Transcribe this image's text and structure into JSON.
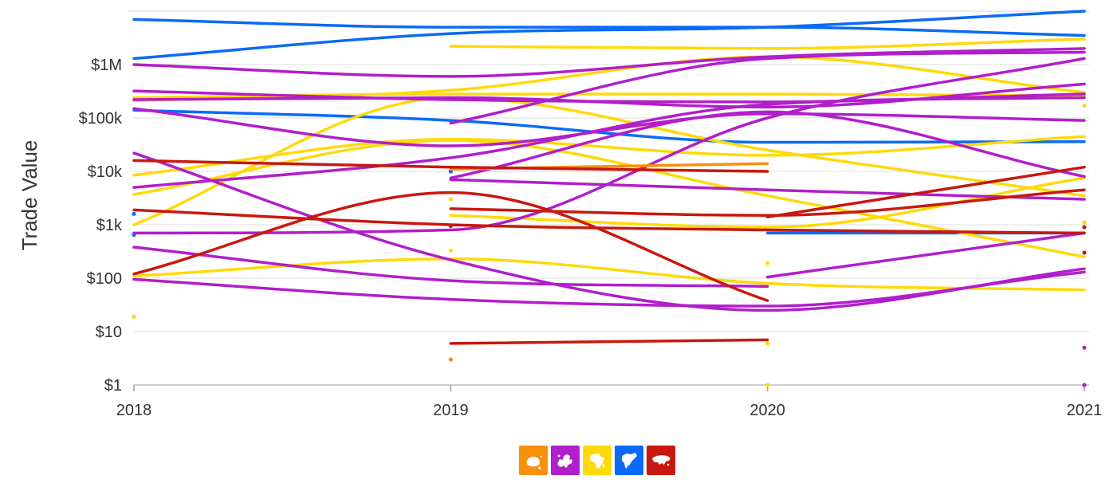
{
  "chart_data": {
    "type": "line",
    "title": "",
    "xlabel": "",
    "ylabel": "Trade Value",
    "x": [
      2018,
      2019,
      2020,
      2021
    ],
    "xlim": [
      2018,
      2021
    ],
    "y_scale": "log",
    "ylim": [
      1,
      30000000
    ],
    "y_ticks": [
      {
        "value": 1,
        "label": "$1"
      },
      {
        "value": 10,
        "label": "$10"
      },
      {
        "value": 100,
        "label": "$100"
      },
      {
        "value": 1000,
        "label": "$1k"
      },
      {
        "value": 10000,
        "label": "$10k"
      },
      {
        "value": 100000,
        "label": "$100k"
      },
      {
        "value": 1000000,
        "label": "$1M"
      }
    ],
    "x_ticks": [
      {
        "value": 2018,
        "label": "2018"
      },
      {
        "value": 2019,
        "label": "2019"
      },
      {
        "value": 2020,
        "label": "2020"
      },
      {
        "value": 2021,
        "label": "2021"
      }
    ],
    "grid": "horizontal",
    "legend_position": "bottom-center",
    "colors": {
      "oceania": "#F7900D",
      "europe": "#B11ECB",
      "africa": "#FFD90A",
      "north-america": "#0A6AF7",
      "asia": "#C8180E"
    },
    "legend": [
      {
        "group": "oceania",
        "icon": "oceania-icon"
      },
      {
        "group": "europe",
        "icon": "europe-icon"
      },
      {
        "group": "africa",
        "icon": "africa-icon"
      },
      {
        "group": "north-america",
        "icon": "north-america-icon"
      },
      {
        "group": "asia",
        "icon": "asia-icon"
      }
    ],
    "series": [
      {
        "group": "north-america",
        "points": [
          [
            2018,
            7000000
          ],
          [
            2019,
            5000000
          ],
          [
            2020,
            5000000
          ],
          [
            2021,
            3500000
          ]
        ]
      },
      {
        "group": "north-america",
        "points": [
          [
            2018,
            1300000
          ],
          [
            2019,
            3800000
          ],
          [
            2020,
            5000000
          ],
          [
            2021,
            10000000
          ]
        ]
      },
      {
        "group": "north-america",
        "points": [
          [
            2018,
            140000
          ],
          [
            2019,
            90000
          ],
          [
            2020,
            35000
          ],
          [
            2021,
            36000
          ]
        ]
      },
      {
        "group": "north-america",
        "points": [
          [
            2020,
            700
          ],
          [
            2021,
            700
          ]
        ]
      },
      {
        "group": "north-america",
        "points": [
          [
            2018,
            1600
          ]
        ]
      },
      {
        "group": "north-america",
        "points": [
          [
            2018,
            650
          ]
        ]
      },
      {
        "group": "north-america",
        "points": [
          [
            2019,
            10000
          ]
        ]
      },
      {
        "group": "africa",
        "points": [
          [
            2019,
            2200000
          ],
          [
            2020,
            2000000
          ],
          [
            2021,
            3000000
          ]
        ]
      },
      {
        "group": "africa",
        "points": [
          [
            2018,
            210000
          ],
          [
            2019,
            330000
          ],
          [
            2020,
            1400000
          ],
          [
            2021,
            300000
          ]
        ]
      },
      {
        "group": "africa",
        "points": [
          [
            2018,
            240000
          ],
          [
            2019,
            280000
          ],
          [
            2020,
            280000
          ],
          [
            2021,
            260000
          ]
        ]
      },
      {
        "group": "africa",
        "points": [
          [
            2018,
            1000
          ],
          [
            2019,
            240000
          ],
          [
            2020,
            25000
          ],
          [
            2021,
            3500
          ]
        ]
      },
      {
        "group": "africa",
        "points": [
          [
            2018,
            8500
          ],
          [
            2019,
            40000
          ],
          [
            2020,
            20000
          ],
          [
            2021,
            45000
          ]
        ]
      },
      {
        "group": "africa",
        "points": [
          [
            2018,
            3700
          ],
          [
            2019,
            38000
          ],
          [
            2020,
            3500
          ],
          [
            2021,
            250
          ]
        ]
      },
      {
        "group": "africa",
        "points": [
          [
            2019,
            1500
          ],
          [
            2020,
            900
          ],
          [
            2021,
            7500
          ]
        ]
      },
      {
        "group": "africa",
        "points": [
          [
            2018,
            110
          ],
          [
            2019,
            230
          ],
          [
            2020,
            80
          ],
          [
            2021,
            60
          ]
        ]
      },
      {
        "group": "africa",
        "points": [
          [
            2018,
            19
          ]
        ]
      },
      {
        "group": "africa",
        "points": [
          [
            2019,
            3000
          ]
        ]
      },
      {
        "group": "africa",
        "points": [
          [
            2019,
            330
          ]
        ]
      },
      {
        "group": "africa",
        "points": [
          [
            2020,
            190
          ]
        ]
      },
      {
        "group": "africa",
        "points": [
          [
            2020,
            6
          ]
        ]
      },
      {
        "group": "africa",
        "points": [
          [
            2020,
            1
          ]
        ]
      },
      {
        "group": "africa",
        "points": [
          [
            2021,
            170000
          ]
        ]
      },
      {
        "group": "africa",
        "points": [
          [
            2021,
            1100
          ]
        ]
      },
      {
        "group": "europe",
        "points": [
          [
            2018,
            1000000
          ],
          [
            2019,
            600000
          ],
          [
            2020,
            1400000
          ],
          [
            2021,
            2000000
          ]
        ]
      },
      {
        "group": "europe",
        "points": [
          [
            2019,
            80000
          ],
          [
            2020,
            1300000
          ],
          [
            2021,
            1700000
          ]
        ]
      },
      {
        "group": "europe",
        "points": [
          [
            2018,
            320000
          ],
          [
            2019,
            220000
          ],
          [
            2020,
            200000
          ],
          [
            2021,
            280000
          ]
        ]
      },
      {
        "group": "europe",
        "points": [
          [
            2018,
            220000
          ],
          [
            2019,
            240000
          ],
          [
            2020,
            160000
          ],
          [
            2021,
            430000
          ]
        ]
      },
      {
        "group": "europe",
        "points": [
          [
            2018,
            150000
          ],
          [
            2019,
            30000
          ],
          [
            2020,
            120000
          ],
          [
            2021,
            90000
          ]
        ]
      },
      {
        "group": "europe",
        "points": [
          [
            2018,
            5000
          ],
          [
            2019,
            18000
          ],
          [
            2020,
            180000
          ],
          [
            2021,
            240000
          ]
        ]
      },
      {
        "group": "europe",
        "points": [
          [
            2019,
            7500
          ],
          [
            2020,
            130000
          ],
          [
            2021,
            8000
          ]
        ]
      },
      {
        "group": "europe",
        "points": [
          [
            2019,
            7000
          ],
          [
            2020,
            4500
          ],
          [
            2021,
            3000
          ]
        ]
      },
      {
        "group": "europe",
        "points": [
          [
            2018,
            700
          ],
          [
            2019,
            800
          ],
          [
            2020,
            100000
          ],
          [
            2021,
            1300000
          ]
        ]
      },
      {
        "group": "europe",
        "points": [
          [
            2018,
            22000
          ],
          [
            2019,
            220
          ],
          [
            2020,
            25
          ],
          [
            2021,
            150
          ]
        ]
      },
      {
        "group": "europe",
        "points": [
          [
            2018,
            380
          ],
          [
            2019,
            90
          ],
          [
            2020,
            70
          ]
        ]
      },
      {
        "group": "europe",
        "points": [
          [
            2018,
            95
          ],
          [
            2019,
            40
          ],
          [
            2020,
            30
          ],
          [
            2021,
            130
          ]
        ]
      },
      {
        "group": "europe",
        "points": [
          [
            2020,
            105
          ],
          [
            2021,
            700
          ]
        ]
      },
      {
        "group": "europe",
        "points": [
          [
            2021,
            5
          ]
        ]
      },
      {
        "group": "europe",
        "points": [
          [
            2021,
            1
          ]
        ]
      },
      {
        "group": "oceania",
        "points": [
          [
            2019,
            11000
          ],
          [
            2020,
            14000
          ]
        ]
      },
      {
        "group": "oceania",
        "points": [
          [
            2019,
            3
          ]
        ]
      },
      {
        "group": "asia",
        "points": [
          [
            2018,
            16000
          ],
          [
            2019,
            12000
          ],
          [
            2020,
            10000
          ]
        ]
      },
      {
        "group": "asia",
        "points": [
          [
            2018,
            1900
          ],
          [
            2019,
            1000
          ],
          [
            2020,
            800
          ],
          [
            2021,
            700
          ]
        ]
      },
      {
        "group": "asia",
        "points": [
          [
            2018,
            120
          ],
          [
            2019,
            4000
          ],
          [
            2020,
            38
          ]
        ]
      },
      {
        "group": "asia",
        "points": [
          [
            2019,
            2000
          ],
          [
            2020,
            1500
          ],
          [
            2021,
            4500
          ]
        ]
      },
      {
        "group": "asia",
        "points": [
          [
            2020,
            1400
          ],
          [
            2021,
            12000
          ]
        ]
      },
      {
        "group": "asia",
        "points": [
          [
            2019,
            6
          ],
          [
            2020,
            7
          ]
        ]
      },
      {
        "group": "asia",
        "points": [
          [
            2019,
            950
          ]
        ]
      },
      {
        "group": "asia",
        "points": [
          [
            2021,
            900
          ]
        ]
      },
      {
        "group": "asia",
        "points": [
          [
            2021,
            300
          ]
        ]
      }
    ]
  }
}
